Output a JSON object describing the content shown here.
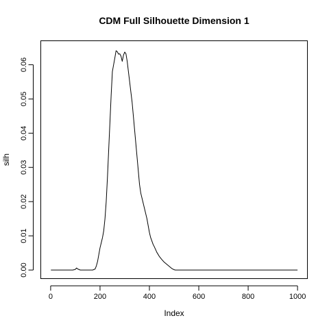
{
  "chart_data": {
    "type": "line",
    "title": "CDM Full Silhouette Dimension 1",
    "xlabel": "Index",
    "ylabel": "silh",
    "xlim": [
      -40,
      1040
    ],
    "ylim": [
      -0.0025,
      0.067
    ],
    "x_ticks": [
      0,
      200,
      400,
      600,
      800,
      1000
    ],
    "x_tick_labels": [
      "0",
      "200",
      "400",
      "600",
      "800",
      "1000"
    ],
    "y_ticks": [
      0.0,
      0.01,
      0.02,
      0.03,
      0.04,
      0.05,
      0.06
    ],
    "y_tick_labels": [
      "0.00",
      "0.01",
      "0.02",
      "0.03",
      "0.04",
      "0.05",
      "0.06"
    ],
    "grid": false,
    "legend": "none",
    "colors": {
      "line": "#000000",
      "axes": "#000000",
      "background": "#ffffff"
    },
    "series": [
      {
        "x": [
          1,
          90,
          100,
          105,
          110,
          120,
          130,
          170,
          180,
          185,
          190,
          195,
          200,
          205,
          210,
          215,
          220,
          225,
          230,
          235,
          240,
          245,
          250,
          255,
          260,
          265,
          270,
          275,
          280,
          285,
          290,
          295,
          300,
          305,
          310,
          315,
          320,
          325,
          330,
          335,
          340,
          345,
          350,
          355,
          360,
          365,
          370,
          375,
          380,
          385,
          390,
          395,
          400,
          405,
          410,
          415,
          420,
          425,
          430,
          440,
          450,
          460,
          470,
          480,
          490,
          500,
          505,
          510,
          600,
          700,
          800,
          900,
          1000
        ],
        "y": [
          0.0,
          0.0,
          0.0002,
          0.0006,
          0.0003,
          0.0,
          0.0,
          0.0,
          0.0003,
          0.0012,
          0.0025,
          0.0045,
          0.0065,
          0.008,
          0.0095,
          0.0115,
          0.015,
          0.02,
          0.027,
          0.035,
          0.043,
          0.051,
          0.058,
          0.06,
          0.062,
          0.0641,
          0.0638,
          0.0631,
          0.0632,
          0.0625,
          0.061,
          0.0628,
          0.0637,
          0.0632,
          0.061,
          0.058,
          0.055,
          0.052,
          0.049,
          0.045,
          0.041,
          0.037,
          0.033,
          0.029,
          0.025,
          0.0225,
          0.021,
          0.0195,
          0.018,
          0.0165,
          0.015,
          0.013,
          0.011,
          0.0095,
          0.0085,
          0.0075,
          0.0068,
          0.006,
          0.0052,
          0.004,
          0.0031,
          0.0023,
          0.0017,
          0.0011,
          0.0005,
          0.0001,
          0.0,
          0.0,
          0.0,
          0.0,
          0.0,
          0.0,
          0.0
        ]
      }
    ]
  }
}
